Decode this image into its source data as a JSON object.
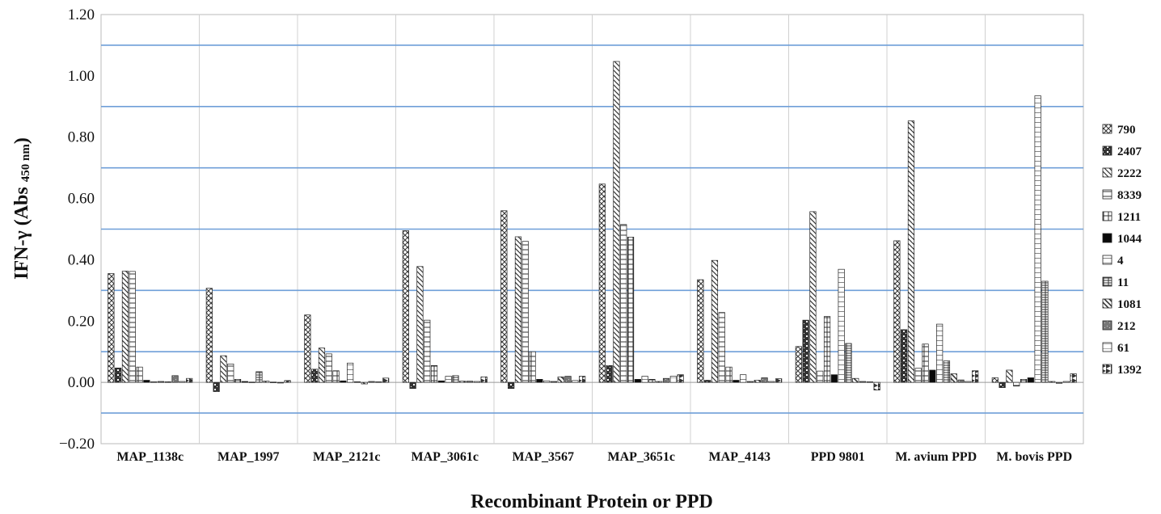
{
  "chart_data": {
    "type": "bar",
    "title": "",
    "xlabel": "Recombinant Protein or PPD",
    "ylabel_main": "IFN-γ (Abs ",
    "ylabel_sub": "450 nm",
    "ylabel_close": ")",
    "ylim": [
      -0.2,
      1.2
    ],
    "yticks": [
      "−0.20",
      "0.00",
      "0.20",
      "0.40",
      "0.60",
      "0.80",
      "1.00",
      "1.20"
    ],
    "grid": "horizontal blue lines at odd tenths",
    "legend_position": "right",
    "categories": [
      "MAP_1138c",
      "MAP_1997",
      "MAP_2121c",
      "MAP_3061c",
      "MAP_3567",
      "MAP_3651c",
      "MAP_4143",
      "PPD 9801",
      "M. avium PPD",
      "M. bovis PPD"
    ],
    "series": [
      {
        "name": "790",
        "values": [
          0.355,
          0.307,
          0.22,
          0.495,
          0.56,
          0.647,
          0.335,
          0.117,
          0.462,
          0.015
        ]
      },
      {
        "name": "2407",
        "values": [
          0.047,
          -0.03,
          0.043,
          -0.02,
          -0.02,
          0.055,
          0.007,
          0.203,
          0.172,
          -0.017
        ]
      },
      {
        "name": "2222",
        "values": [
          0.363,
          0.087,
          0.112,
          0.378,
          0.475,
          1.047,
          0.398,
          0.557,
          0.853,
          0.04
        ]
      },
      {
        "name": "8339",
        "values": [
          0.362,
          0.06,
          0.093,
          0.203,
          0.46,
          0.515,
          0.228,
          0.037,
          0.046,
          -0.012
        ]
      },
      {
        "name": "1211",
        "values": [
          0.05,
          0.01,
          0.038,
          0.055,
          0.1,
          0.474,
          0.05,
          0.215,
          0.125,
          0.01
        ]
      },
      {
        "name": "1044",
        "values": [
          0.007,
          0.003,
          0.005,
          0.005,
          0.01,
          0.01,
          0.007,
          0.025,
          0.04,
          0.015
        ]
      },
      {
        "name": "4",
        "values": [
          0.002,
          0.001,
          0.063,
          0.02,
          0.005,
          0.02,
          0.025,
          0.369,
          0.19,
          0.935
        ]
      },
      {
        "name": "11",
        "values": [
          0.003,
          0.035,
          0.002,
          0.022,
          0.003,
          0.01,
          0.003,
          0.127,
          0.07,
          0.33
        ]
      },
      {
        "name": "1081",
        "values": [
          0.002,
          0.004,
          -0.005,
          0.004,
          0.018,
          0.003,
          0.007,
          0.013,
          0.028,
          0.003
        ]
      },
      {
        "name": "212",
        "values": [
          0.022,
          0.001,
          0.003,
          0.004,
          0.02,
          0.013,
          0.015,
          0.003,
          0.008,
          -0.003
        ]
      },
      {
        "name": "61",
        "values": [
          0.003,
          -0.002,
          0.002,
          0.003,
          0.006,
          0.02,
          0.003,
          0.002,
          0.003,
          0.003
        ]
      },
      {
        "name": "1392",
        "values": [
          0.013,
          0.006,
          0.014,
          0.018,
          0.02,
          0.025,
          0.012,
          -0.025,
          0.038,
          0.028
        ]
      }
    ],
    "colors": {
      "bar_stroke": "#222222",
      "hatch_ink": "#333333",
      "grid": "#6f9fd8",
      "vgrid": "#d0d0d0",
      "frame": "#bbbbbb"
    }
  }
}
